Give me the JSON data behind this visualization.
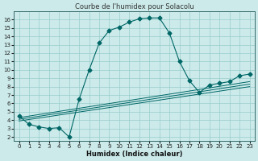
{
  "title": "Courbe de l'humidex pour Solacolu",
  "xlabel": "Humidex (Indice chaleur)",
  "bg_color": "#cceaea",
  "line_color": "#006666",
  "grid_color": "#99cccc",
  "xlim": [
    -0.5,
    23.5
  ],
  "ylim": [
    1.5,
    17.0
  ],
  "xticks": [
    0,
    1,
    2,
    3,
    4,
    5,
    6,
    7,
    8,
    9,
    10,
    11,
    12,
    13,
    14,
    15,
    16,
    17,
    18,
    19,
    20,
    21,
    22,
    23
  ],
  "yticks": [
    2,
    3,
    4,
    5,
    6,
    7,
    8,
    9,
    10,
    11,
    12,
    13,
    14,
    15,
    16
  ],
  "curve1_x": [
    0,
    1,
    2,
    3,
    4,
    5,
    6,
    7,
    8,
    9,
    10,
    11,
    12,
    13,
    14,
    15,
    16,
    17,
    18,
    19,
    20,
    21,
    22,
    23
  ],
  "curve1_y": [
    4.5,
    3.5,
    3.2,
    3.0,
    3.1,
    2.0,
    6.5,
    10.0,
    13.2,
    14.7,
    15.1,
    15.7,
    16.1,
    16.2,
    16.2,
    14.4,
    11.0,
    8.7,
    7.3,
    8.2,
    8.4,
    8.6,
    9.3,
    9.5
  ],
  "line2_x": [
    0,
    23
  ],
  "line2_y": [
    3.9,
    8.0
  ],
  "line3_x": [
    0,
    23
  ],
  "line3_y": [
    4.1,
    8.3
  ],
  "line4_x": [
    0,
    23
  ],
  "line4_y": [
    4.3,
    8.6
  ],
  "markersize": 2.5,
  "title_fontsize": 6,
  "xlabel_fontsize": 6,
  "tick_fontsize": 5
}
